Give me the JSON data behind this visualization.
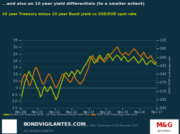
{
  "title": "...and also on 10 year yield differentials (to a smaller extent)",
  "subtitle": "10 year Treasury minus 10 year Bund yield vs USD/EUR spot rate",
  "title_color": "#e8e8e8",
  "subtitle_color": "#c8d400",
  "bg_color": "#0d3040",
  "plot_bg_color": "#0d3040",
  "x_labels": [
    "Nov-09",
    "Nov-10",
    "Nov-11",
    "Nov-12",
    "Nov-13",
    "Nov-14",
    "Nov-15",
    "Nov-16",
    "Nov-17"
  ],
  "yleft_min": -1.5,
  "yleft_max": 3.5,
  "yright_min": 0.6,
  "yright_max": 1.0,
  "yleft_ticks": [
    -1.5,
    -1.0,
    -0.5,
    0.0,
    0.5,
    1.0,
    1.5,
    2.0,
    2.5,
    3.0,
    3.5
  ],
  "yright_ticks": [
    0.6,
    0.65,
    0.7,
    0.75,
    0.8,
    0.85,
    0.9,
    0.95,
    1.0
  ],
  "line1_color": "#b8cc00",
  "line2_color": "#f07800",
  "grid_color": "#1a4a5a",
  "legend1": "10 Year US Treasury Yield - 10 Year German Bund Yield (lhs)",
  "legend2": "USD/ EUR Exchange rate (rhs)",
  "footer_bg": "#061820",
  "footer_text": "BONDVIGILANTES.COM",
  "footer_sub": "#@ BONDVIGILANTES",
  "source_text": "Source: M&G, Datastream of 17th November 2017",
  "ylabel_right": "USD / EUR exchange rate",
  "n_points": 97,
  "yield_diff": [
    -0.9,
    -0.5,
    0.0,
    0.4,
    0.7,
    1.0,
    1.2,
    0.9,
    0.8,
    0.6,
    0.4,
    0.1,
    -0.1,
    -0.3,
    -0.7,
    -0.5,
    -0.1,
    0.1,
    -0.2,
    -0.3,
    -0.1,
    0.1,
    -0.1,
    -0.4,
    -0.6,
    -0.9,
    -0.7,
    -0.3,
    0.1,
    0.4,
    0.7,
    1.0,
    1.1,
    1.0,
    0.8,
    1.0,
    1.2,
    1.1,
    0.9,
    1.1,
    1.3,
    1.2,
    1.0,
    1.2,
    1.4,
    1.6,
    1.7,
    1.9,
    2.1,
    2.3,
    2.2,
    2.0,
    1.8,
    1.9,
    2.1,
    2.3,
    2.4,
    2.2,
    2.0,
    2.1,
    2.2,
    2.4,
    2.5,
    2.3,
    2.2,
    2.0,
    2.2,
    2.3,
    2.4,
    2.3,
    2.2,
    2.0,
    2.2,
    2.3,
    2.2,
    2.0,
    1.9,
    2.0,
    2.1,
    2.2,
    2.3,
    2.1,
    2.0,
    1.8,
    1.9,
    2.0,
    2.2,
    2.0,
    1.8,
    1.7,
    1.8,
    1.9,
    2.0,
    1.9,
    1.8,
    1.7,
    1.9
  ],
  "usd_eur": [
    0.73,
    0.76,
    0.79,
    0.8,
    0.78,
    0.76,
    0.73,
    0.74,
    0.77,
    0.8,
    0.83,
    0.84,
    0.82,
    0.8,
    0.77,
    0.75,
    0.74,
    0.75,
    0.77,
    0.79,
    0.8,
    0.79,
    0.77,
    0.75,
    0.73,
    0.72,
    0.73,
    0.75,
    0.77,
    0.79,
    0.8,
    0.79,
    0.78,
    0.77,
    0.76,
    0.75,
    0.76,
    0.78,
    0.79,
    0.77,
    0.76,
    0.75,
    0.74,
    0.75,
    0.76,
    0.78,
    0.8,
    0.82,
    0.84,
    0.88,
    0.9,
    0.91,
    0.89,
    0.88,
    0.87,
    0.89,
    0.9,
    0.89,
    0.88,
    0.87,
    0.88,
    0.89,
    0.9,
    0.91,
    0.92,
    0.93,
    0.94,
    0.95,
    0.96,
    0.95,
    0.93,
    0.92,
    0.91,
    0.92,
    0.93,
    0.92,
    0.91,
    0.92,
    0.93,
    0.94,
    0.95,
    0.94,
    0.93,
    0.92,
    0.91,
    0.9,
    0.92,
    0.93,
    0.91,
    0.9,
    0.89,
    0.9,
    0.91,
    0.89,
    0.88,
    0.87,
    0.86
  ]
}
